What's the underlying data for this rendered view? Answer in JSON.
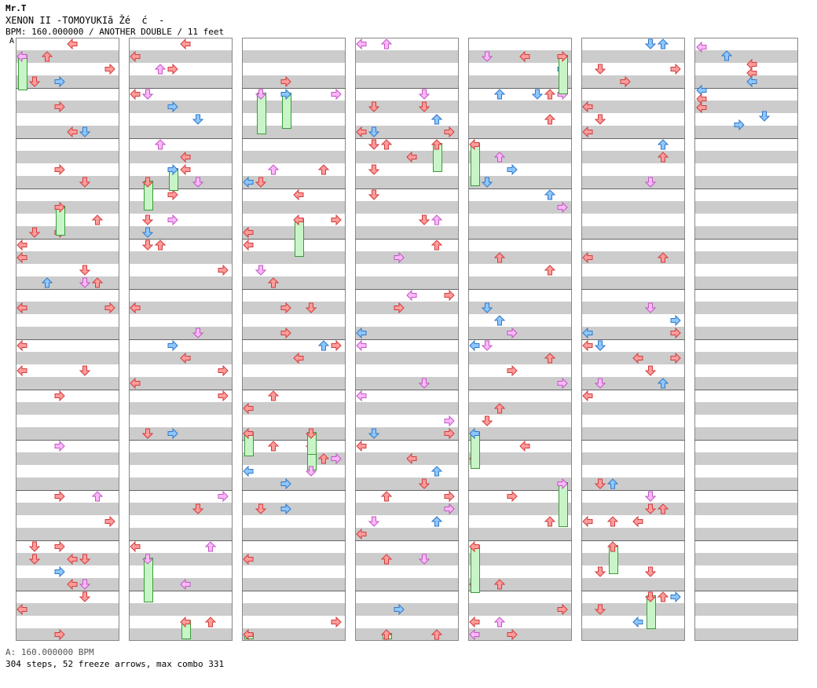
{
  "header": {
    "author": "Mr.T",
    "title": "XENON II -TOMOYUKIă Žé  ć  -",
    "meta": "BPM: 160.000000 / ANOTHER DOUBLE / 11 feet",
    "marker": "A"
  },
  "footer": {
    "bpm_line": "A: 160.000000 BPM",
    "stats": "304 steps, 52 freeze arrows, max combo 331"
  },
  "colors": {
    "red": "#ff9c9c",
    "red_stroke": "#d23c3c",
    "blue": "#8fc7ff",
    "blue_stroke": "#2f78c8",
    "pink": "#ffb8ff",
    "pink_stroke": "#c056c0",
    "freeze_fill": "#c8f5c8",
    "freeze_stroke": "#3a9a3a",
    "stripe": "#cccccc"
  },
  "chart": {
    "columns": 7,
    "measures_per_column": 12,
    "lanes": 8
  }
}
